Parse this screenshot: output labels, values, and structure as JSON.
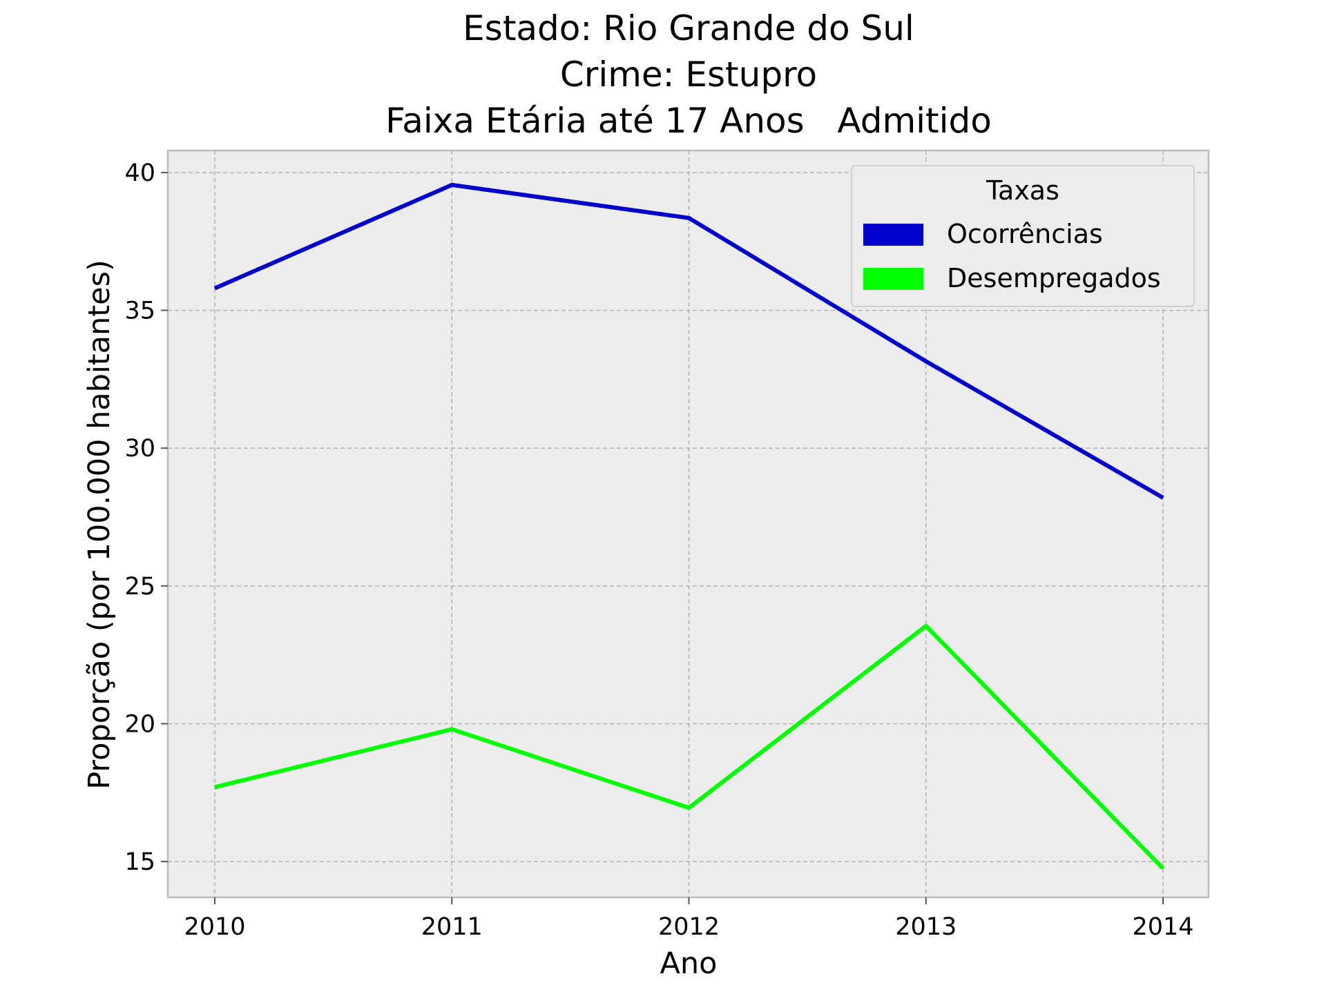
{
  "chart_data": {
    "type": "line",
    "title_lines": [
      "Estado: Rio Grande do Sul",
      "Crime: Estupro",
      "Faixa Etária até 17 Anos   Admitido"
    ],
    "xlabel": "Ano",
    "ylabel": "Proporção (por 100.000 habitantes)",
    "x": [
      "2010",
      "2011",
      "2012",
      "2013",
      "2014"
    ],
    "ylim": [
      13.7,
      40.8
    ],
    "yticks": [
      "15",
      "20",
      "25",
      "30",
      "35",
      "40"
    ],
    "grid": true,
    "legend": {
      "title": "Taxas",
      "placement": "top-right"
    },
    "series": [
      {
        "name": "Ocorrências",
        "color": "#0000cd",
        "values": [
          35.8,
          39.55,
          38.35,
          33.15,
          28.2
        ]
      },
      {
        "name": "Desempregados",
        "color": "#00ff00",
        "values": [
          17.7,
          19.8,
          16.95,
          23.55,
          14.75
        ]
      }
    ],
    "colors": {
      "plot_background": "#ececec",
      "frame": "#bcbcbc",
      "grid": "#b0b0b0"
    }
  }
}
